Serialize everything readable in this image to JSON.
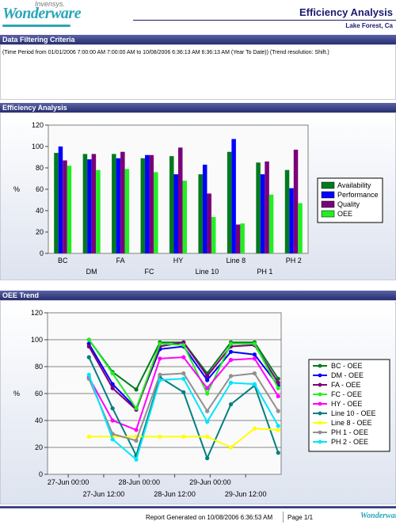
{
  "header": {
    "brand_top": "Invensys.",
    "brand_logo": "Wonderware",
    "title": "Efficiency Analysis",
    "location": "Lake Forest, Ca"
  },
  "sections": {
    "filter_title": "Data Filtering Criteria",
    "filter_text": "(Time Period from 01/01/2006 7:00:00 AM 7:00:00 AM to 10/08/2006 6:36:13 AM 6:36:13 AM (Year To Date)) (Trend resolution: Shift.)",
    "efficiency_title": "Efficiency Analysis",
    "oee_title": "OEE Trend"
  },
  "footer": {
    "generated": "Report Generated on 10/08/2006 6:36:53 AM",
    "page": "Page 1/1",
    "logo": "Wonderware"
  },
  "chart_data": [
    {
      "type": "bar",
      "categories": [
        "BC",
        "DM",
        "FA",
        "FC",
        "HY",
        "Line 10",
        "Line 8",
        "PH 1",
        "PH 2"
      ],
      "ylabel": "%",
      "ylim": [
        0,
        120
      ],
      "yticks": [
        0,
        20,
        40,
        60,
        80,
        100,
        120
      ],
      "legend_position": "right",
      "series": [
        {
          "name": "Availability",
          "color": "#007a1e",
          "values": [
            94,
            93,
            93,
            89,
            91,
            74,
            95,
            85,
            78
          ]
        },
        {
          "name": "Performance",
          "color": "#0000ff",
          "values": [
            100,
            88,
            89,
            92,
            74,
            83,
            107,
            74,
            61
          ]
        },
        {
          "name": "Quality",
          "color": "#7a007a",
          "values": [
            87,
            93,
            95,
            92,
            99,
            56,
            27,
            86,
            97
          ]
        },
        {
          "name": "OEE",
          "color": "#22ee22",
          "values": [
            82,
            78,
            79,
            76,
            68,
            34,
            28,
            55,
            47
          ]
        }
      ]
    },
    {
      "type": "line",
      "x": [
        "2006-06-27 07:00",
        "2006-06-27 15:00",
        "2006-06-27 23:00",
        "2006-06-28 07:00",
        "2006-06-28 15:00",
        "2006-06-28 23:00",
        "2006-06-29 07:00",
        "2006-06-29 15:00",
        "2006-06-29 23:00"
      ],
      "xtick_labels": [
        "27-Jun 00:00",
        "27-Jun 12:00",
        "28-Jun 00:00",
        "28-Jun 12:00",
        "29-Jun 00:00",
        "29-Jun 12:00"
      ],
      "xtick_times": [
        "2006-06-27 00:00",
        "2006-06-27 12:00",
        "2006-06-28 00:00",
        "2006-06-28 12:00",
        "2006-06-29 00:00",
        "2006-06-29 12:00"
      ],
      "xrange": [
        "2006-06-26 17:00",
        "2006-06-30 00:00"
      ],
      "ylabel": "%",
      "ylim": [
        0,
        120
      ],
      "yticks": [
        0,
        20,
        40,
        60,
        80,
        100,
        120
      ],
      "legend_position": "right",
      "series": [
        {
          "name": "BC - OEE",
          "color": "#007a1e",
          "values": [
            100,
            76,
            63,
            98,
            98,
            75,
            98,
            98,
            71
          ]
        },
        {
          "name": "DM - OEE",
          "color": "#0000ff",
          "values": [
            97,
            67,
            49,
            93,
            95,
            70,
            91,
            89,
            66
          ]
        },
        {
          "name": "FA - OEE",
          "color": "#7a007a",
          "values": [
            95,
            64,
            48,
            95,
            98,
            73,
            95,
            96,
            68
          ]
        },
        {
          "name": "FC - OEE",
          "color": "#22ee22",
          "values": [
            100,
            75,
            49,
            97,
            96,
            60,
            97,
            97,
            64
          ]
        },
        {
          "name": "HY - OEE",
          "color": "#ff00ff",
          "values": [
            72,
            40,
            33,
            86,
            87,
            64,
            85,
            86,
            58
          ]
        },
        {
          "name": "Line 10 - OEE",
          "color": "#008080",
          "values": [
            87,
            49,
            14,
            72,
            61,
            12,
            52,
            66,
            16
          ]
        },
        {
          "name": "Line 8 - OEE",
          "color": "#ffff00",
          "values": [
            28,
            28,
            28,
            28,
            28,
            28,
            20,
            34,
            33
          ]
        },
        {
          "name": "PH 1 - OEE",
          "color": "#909090",
          "values": [
            71,
            30,
            25,
            74,
            75,
            47,
            73,
            75,
            47
          ]
        },
        {
          "name": "PH 2 - OEE",
          "color": "#00e5ff",
          "values": [
            74,
            26,
            11,
            70,
            71,
            39,
            68,
            67,
            36
          ]
        }
      ]
    }
  ]
}
